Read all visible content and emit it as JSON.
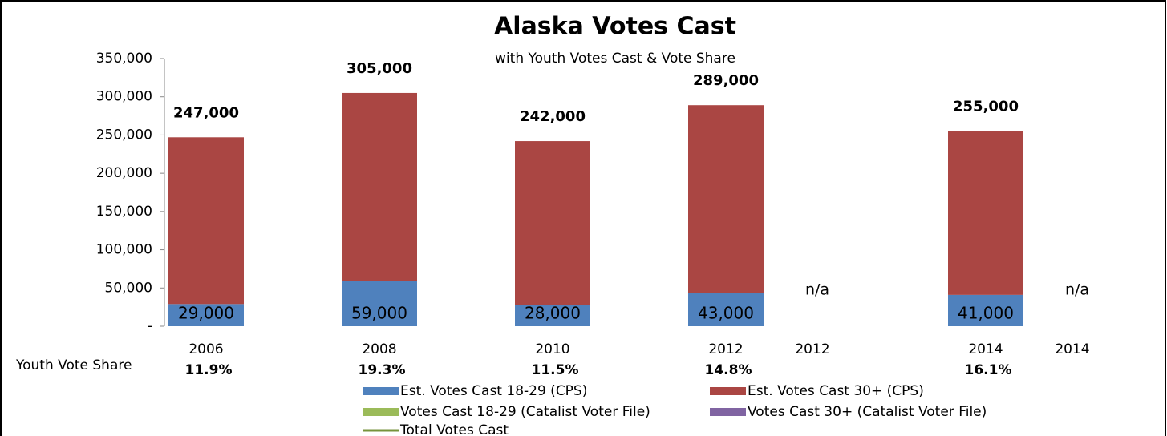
{
  "chart_data": {
    "type": "bar",
    "stacked": true,
    "title": "Alaska Votes Cast",
    "subtitle": "with Youth Votes Cast & Vote Share",
    "categories": [
      "2006",
      null,
      "2008",
      null,
      "2010",
      null,
      "2012",
      "2012",
      null,
      "2014",
      "2014"
    ],
    "ylim": [
      0,
      350000
    ],
    "yticks": [
      {
        "value": 0,
        "label": "-"
      },
      {
        "value": 50000,
        "label": "50,000"
      },
      {
        "value": 100000,
        "label": "100,000"
      },
      {
        "value": 150000,
        "label": "150,000"
      },
      {
        "value": 200000,
        "label": "200,000"
      },
      {
        "value": 250000,
        "label": "250,000"
      },
      {
        "value": 300000,
        "label": "300,000"
      },
      {
        "value": 350000,
        "label": "350,000"
      }
    ],
    "grid": false,
    "series": [
      {
        "name": "Est. Votes Cast 18-29 (CPS)",
        "color": "#4f81bd",
        "type": "bar",
        "values": [
          29000,
          null,
          59000,
          null,
          28000,
          null,
          43000,
          null,
          null,
          41000,
          null
        ],
        "value_labels": [
          "29,000",
          null,
          "59,000",
          null,
          "28,000",
          null,
          "43,000",
          null,
          null,
          "41,000",
          null
        ]
      },
      {
        "name": "Est. Votes Cast 30+ (CPS)",
        "color": "#aa4643",
        "type": "bar",
        "values": [
          218000,
          null,
          246000,
          null,
          214000,
          null,
          246000,
          null,
          null,
          214000,
          null
        ]
      },
      {
        "name": "Votes Cast 18-29 (Catalist Voter File)",
        "color": "#9bbb59",
        "type": "bar",
        "values": [
          null,
          null,
          null,
          null,
          null,
          null,
          null,
          null,
          null,
          null,
          null
        ],
        "value_labels": [
          null,
          null,
          null,
          null,
          null,
          null,
          null,
          "n/a",
          null,
          null,
          "n/a"
        ]
      },
      {
        "name": "Votes Cast 30+ (Catalist Voter File)",
        "color": "#8064a2",
        "type": "bar",
        "values": [
          null,
          null,
          null,
          null,
          null,
          null,
          null,
          null,
          null,
          null,
          null
        ]
      },
      {
        "name": "Total Votes Cast",
        "color": "#77933c",
        "type": "line",
        "values": [
          247000,
          null,
          305000,
          null,
          242000,
          null,
          289000,
          null,
          null,
          255000,
          null
        ],
        "value_labels": [
          "247,000",
          null,
          "305,000",
          null,
          "242,000",
          null,
          "289,000",
          null,
          null,
          "255,000",
          null
        ]
      }
    ],
    "youth_vote_share": {
      "label": "Youth Vote Share",
      "color": "#4f81bd",
      "values": [
        11.9,
        null,
        19.3,
        null,
        11.5,
        null,
        14.8,
        null,
        null,
        16.1,
        null
      ],
      "value_labels": [
        "11.9%",
        null,
        "19.3%",
        null,
        "11.5%",
        null,
        "14.8%",
        null,
        null,
        "16.1%",
        null
      ]
    }
  }
}
